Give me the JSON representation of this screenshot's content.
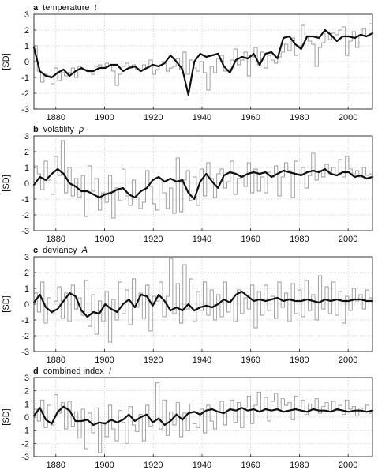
{
  "chart_data": [
    {
      "type": "line",
      "panel_letter": "a",
      "title": "temperature",
      "title_symbol": "t",
      "ylabel": "[SD]",
      "xlim": [
        1871,
        2010
      ],
      "ylim": [
        -3,
        3
      ],
      "xticks": [
        1880,
        1900,
        1920,
        1940,
        1960,
        1980,
        2000
      ],
      "yticks": [
        3,
        2,
        1,
        0,
        -1,
        -2,
        -3
      ],
      "grid": true,
      "series": [
        {
          "style": "annual-step",
          "color": "#999999",
          "x_start": 1871,
          "step": 2,
          "values": [
            1.0,
            -0.6,
            -1.3,
            -0.8,
            -0.9,
            -1.4,
            -0.4,
            -1.2,
            -0.7,
            -0.9,
            -0.7,
            -0.4,
            -1.0,
            -0.3,
            -0.5,
            -0.5,
            -0.6,
            -0.8,
            -0.3,
            -0.2,
            -0.4,
            -0.1,
            -0.2,
            -0.6,
            -1.5,
            -0.8,
            -0.3,
            -0.1,
            -0.4,
            -0.2,
            -0.5,
            -0.6,
            -0.2,
            -0.4,
            0.1,
            -0.8,
            -0.5,
            -0.2,
            0.0,
            -0.6,
            -0.4,
            -0.3,
            0.2,
            -0.5,
            0.6,
            -0.8,
            0.1,
            -0.4,
            -0.6,
            0.0,
            -0.7,
            -1.8,
            -0.3,
            -0.7,
            0.2,
            0.4,
            -0.6,
            -0.5,
            0.1,
            0.8,
            -0.2,
            0.1,
            0.6,
            -0.9,
            0.3,
            0.9,
            -0.2,
            0.6,
            -0.4,
            0.4,
            0.1,
            -0.1,
            0.3,
            0.6,
            1.1,
            0.7,
            1.5,
            0.4,
            1.0,
            2.3,
            1.6,
            1.3,
            1.1,
            -0.3,
            0.9,
            1.2,
            1.9,
            1.4,
            1.8,
            1.7,
            2.0,
            2.2,
            0.4,
            1.3,
            1.9,
            0.9,
            1.7,
            2.1,
            1.6,
            2.4
          ]
        },
        {
          "style": "smooth",
          "color": "#111111",
          "x_start": 1871,
          "step": 5,
          "values": [
            0.9,
            -0.6,
            -0.9,
            -1.0,
            -0.7,
            -0.5,
            -0.9,
            -0.6,
            -0.4,
            -0.6,
            -0.6,
            -0.4,
            -0.4,
            -0.2,
            -0.2,
            -0.6,
            -0.4,
            -0.3,
            -0.6,
            -0.4,
            -0.2,
            -0.3,
            -0.1,
            0.4,
            0.0,
            -0.5,
            -2.1,
            0.0,
            0.5,
            0.3,
            0.4,
            0.5,
            -0.3,
            -0.7,
            0.1,
            0.3,
            0.2,
            0.5,
            -0.2,
            0.5,
            0.6,
            0.2,
            1.5,
            1.6,
            1.1,
            0.8,
            1.6,
            1.6,
            1.5,
            2.0,
            1.7,
            1.3,
            1.6,
            1.6,
            1.5,
            1.7,
            1.6,
            1.8
          ]
        }
      ]
    },
    {
      "type": "line",
      "panel_letter": "b",
      "title": "volatility",
      "title_symbol": "p",
      "ylabel": "[SD]",
      "xlim": [
        1871,
        2010
      ],
      "ylim": [
        -3,
        3
      ],
      "xticks": [
        1880,
        1900,
        1920,
        1940,
        1960,
        1980,
        2000
      ],
      "yticks": [
        3,
        2,
        1,
        0,
        -1,
        -2,
        -3
      ],
      "grid": true,
      "series": [
        {
          "style": "annual-step",
          "color": "#999999",
          "x_start": 1871,
          "step": 2,
          "values": [
            1.1,
            0.6,
            -0.4,
            1.4,
            0.2,
            -0.7,
            1.7,
            0.5,
            2.7,
            -0.6,
            1.0,
            -0.8,
            0.3,
            -0.9,
            0.5,
            -2.1,
            1.1,
            -0.5,
            0.3,
            -1.7,
            -0.6,
            -1.2,
            0.5,
            -2.2,
            -0.3,
            -1.1,
            0.9,
            -0.8,
            -1.4,
            0.2,
            -0.9,
            -1.6,
            -1.2,
            0.8,
            -0.2,
            -1.3,
            -1.7,
            0.3,
            -0.6,
            -1.6,
            -0.3,
            -1.9,
            1.6,
            -1.8,
            0.2,
            0.8,
            -1.1,
            0.4,
            -1.4,
            0.9,
            -0.8,
            1.3,
            0.3,
            -0.9,
            0.6,
            0.9,
            -0.3,
            0.1,
            1.4,
            -0.7,
            0.3,
            0.5,
            -0.2,
            1.3,
            -0.6,
            0.9,
            -0.5,
            0.4,
            -0.6,
            0.7,
            0.4,
            1.1,
            -0.8,
            0.4,
            1.3,
            0.8,
            -0.9,
            1.4,
            0.6,
            1.0,
            -0.3,
            0.5,
            1.9,
            0.2,
            0.8,
            0.4,
            1.2,
            0.6,
            1.0,
            0.5,
            1.5,
            0.4,
            1.7,
            0.9,
            0.6,
            0.8,
            0.4,
            1.0,
            0.5,
            0.6
          ]
        },
        {
          "style": "smooth",
          "color": "#111111",
          "x_start": 1871,
          "step": 5,
          "values": [
            -0.1,
            0.4,
            0.2,
            0.6,
            0.9,
            0.6,
            0.0,
            -0.2,
            -0.5,
            -0.5,
            -0.7,
            -0.9,
            -0.7,
            -0.6,
            -0.4,
            -0.3,
            -0.7,
            -0.9,
            -0.5,
            -0.3,
            0.2,
            0.4,
            0.1,
            0.3,
            0.1,
            0.2,
            -0.6,
            -1.0,
            0.1,
            0.6,
            0.1,
            -0.3,
            0.5,
            0.7,
            0.6,
            0.4,
            0.6,
            0.7,
            0.6,
            0.7,
            0.4,
            0.6,
            0.8,
            0.7,
            0.6,
            0.5,
            0.7,
            0.8,
            0.7,
            0.9,
            0.6,
            0.5,
            0.7,
            0.7,
            0.4,
            0.5,
            0.3,
            0.4
          ]
        }
      ]
    },
    {
      "type": "line",
      "panel_letter": "c",
      "title": "deviancy",
      "title_symbol": "A",
      "ylabel": "[SD]",
      "xlim": [
        1871,
        2010
      ],
      "ylim": [
        -3,
        3
      ],
      "xticks": [
        1880,
        1900,
        1920,
        1940,
        1960,
        1980,
        2000
      ],
      "yticks": [
        3,
        2,
        1,
        0,
        -1,
        -2,
        -3
      ],
      "grid": true,
      "series": [
        {
          "style": "annual-step",
          "color": "#999999",
          "x_start": 1871,
          "step": 2,
          "values": [
            0.7,
            -0.5,
            1.4,
            -1.2,
            0.4,
            -0.6,
            0.2,
            1.1,
            -0.9,
            0.7,
            -1.1,
            1.2,
            -0.3,
            0.4,
            -0.7,
            1.5,
            -1.4,
            0.6,
            -1.9,
            0.2,
            -1.1,
            0.8,
            -2.4,
            0.3,
            -1.0,
            1.4,
            -0.6,
            0.9,
            -1.3,
            1.6,
            -0.2,
            0.7,
            -0.9,
            1.2,
            -1.7,
            0.5,
            0.2,
            1.4,
            -0.8,
            0.5,
            2.9,
            -0.6,
            1.3,
            -1.2,
            2.5,
            -0.3,
            1.6,
            -1.1,
            0.8,
            -0.4,
            1.4,
            -0.7,
            0.9,
            -1.0,
            0.6,
            -0.8,
            1.4,
            -0.5,
            0.3,
            -1.1,
            0.9,
            -0.6,
            0.4,
            -0.3,
            1.2,
            -1.5,
            0.8,
            -0.7,
            1.2,
            -0.4,
            0.5,
            -0.9,
            1.4,
            -0.2,
            0.7,
            -1.1,
            1.3,
            -0.6,
            0.9,
            -0.8,
            1.5,
            -0.4,
            0.6,
            -1.0,
            1.8,
            -0.3,
            1.1,
            -0.6,
            1.4,
            -0.7,
            0.8,
            -1.2,
            0.5,
            -0.4,
            1.0,
            0.2,
            0.6,
            -0.3,
            0.9,
            0.4
          ]
        },
        {
          "style": "smooth",
          "color": "#111111",
          "x_start": 1871,
          "step": 5,
          "values": [
            0.1,
            0.6,
            -0.2,
            -0.5,
            -0.3,
            0.2,
            0.7,
            0.5,
            -0.4,
            -0.8,
            -0.5,
            -0.6,
            0.0,
            -0.3,
            -0.5,
            0.0,
            0.3,
            -0.2,
            0.6,
            0.5,
            -0.1,
            0.6,
            0.2,
            -0.4,
            -0.2,
            -0.4,
            0.0,
            -0.4,
            -0.2,
            -0.1,
            -0.2,
            0.0,
            0.3,
            0.1,
            0.6,
            0.8,
            0.5,
            0.2,
            0.3,
            0.2,
            0.3,
            0.4,
            0.2,
            0.3,
            0.2,
            0.2,
            0.3,
            0.2,
            0.1,
            0.3,
            0.2,
            0.3,
            0.2,
            0.2,
            0.3,
            0.3,
            0.2,
            0.2
          ]
        }
      ]
    },
    {
      "type": "line",
      "panel_letter": "d",
      "title": "combined index",
      "title_symbol": "I",
      "ylabel": "[SD]",
      "xlim": [
        1871,
        2010
      ],
      "ylim": [
        -3,
        3
      ],
      "xticks": [
        1880,
        1900,
        1920,
        1940,
        1960,
        1980,
        2000
      ],
      "yticks": [
        3,
        2,
        1,
        0,
        -1,
        -2,
        -3
      ],
      "grid": true,
      "series": [
        {
          "style": "annual-step",
          "color": "#999999",
          "x_start": 1871,
          "step": 2,
          "values": [
            0.6,
            -0.3,
            1.3,
            -0.8,
            0.9,
            -0.6,
            1.7,
            0.3,
            1.1,
            -0.9,
            1.2,
            -0.7,
            0.4,
            -1.6,
            0.6,
            -2.4,
            0.3,
            -1.2,
            0.7,
            -2.7,
            -0.4,
            -1.5,
            0.9,
            -0.9,
            -1.8,
            0.5,
            -0.4,
            -2.0,
            0.8,
            -0.6,
            -1.1,
            0.2,
            -1.8,
            0.9,
            -0.7,
            -0.3,
            2.6,
            -0.9,
            1.3,
            -1.4,
            0.4,
            -0.6,
            1.1,
            -1.5,
            0.3,
            -1.0,
            1.0,
            -0.5,
            -0.8,
            0.6,
            -1.2,
            0.9,
            -0.3,
            -0.9,
            0.4,
            1.2,
            -0.6,
            0.5,
            1.3,
            -0.4,
            1.1,
            -0.8,
            0.7,
            1.6,
            -0.5,
            0.9,
            1.9,
            0.4,
            1.5,
            -0.3,
            1.2,
            1.8,
            0.5,
            1.4,
            0.9,
            1.1,
            -0.2,
            1.6,
            0.7,
            1.3,
            0.2,
            1.0,
            0.6,
            1.4,
            0.3,
            0.8,
            1.1,
            0.4,
            1.2,
            0.5,
            0.9,
            0.2,
            1.3,
            0.6,
            0.8,
            0.1,
            0.7,
            0.4,
            0.9,
            0.3
          ]
        },
        {
          "style": "smooth",
          "color": "#111111",
          "x_start": 1871,
          "step": 5,
          "values": [
            0.1,
            0.7,
            -0.2,
            -0.5,
            0.4,
            0.8,
            0.5,
            -0.3,
            -0.3,
            -0.2,
            -0.6,
            -0.4,
            -0.5,
            -0.2,
            -0.4,
            -0.2,
            0.2,
            -0.3,
            0.0,
            0.2,
            -0.4,
            -0.1,
            -0.6,
            -0.3,
            0.2,
            -0.2,
            0.3,
            0.4,
            0.2,
            0.5,
            0.6,
            0.4,
            0.3,
            0.6,
            0.5,
            0.7,
            0.5,
            0.6,
            0.4,
            0.6,
            0.5,
            0.6,
            0.4,
            0.5,
            0.6,
            0.5,
            0.4,
            0.6,
            0.5,
            0.5,
            0.4,
            0.6,
            0.5,
            0.4,
            0.5,
            0.5,
            0.4,
            0.5
          ]
        }
      ]
    }
  ]
}
